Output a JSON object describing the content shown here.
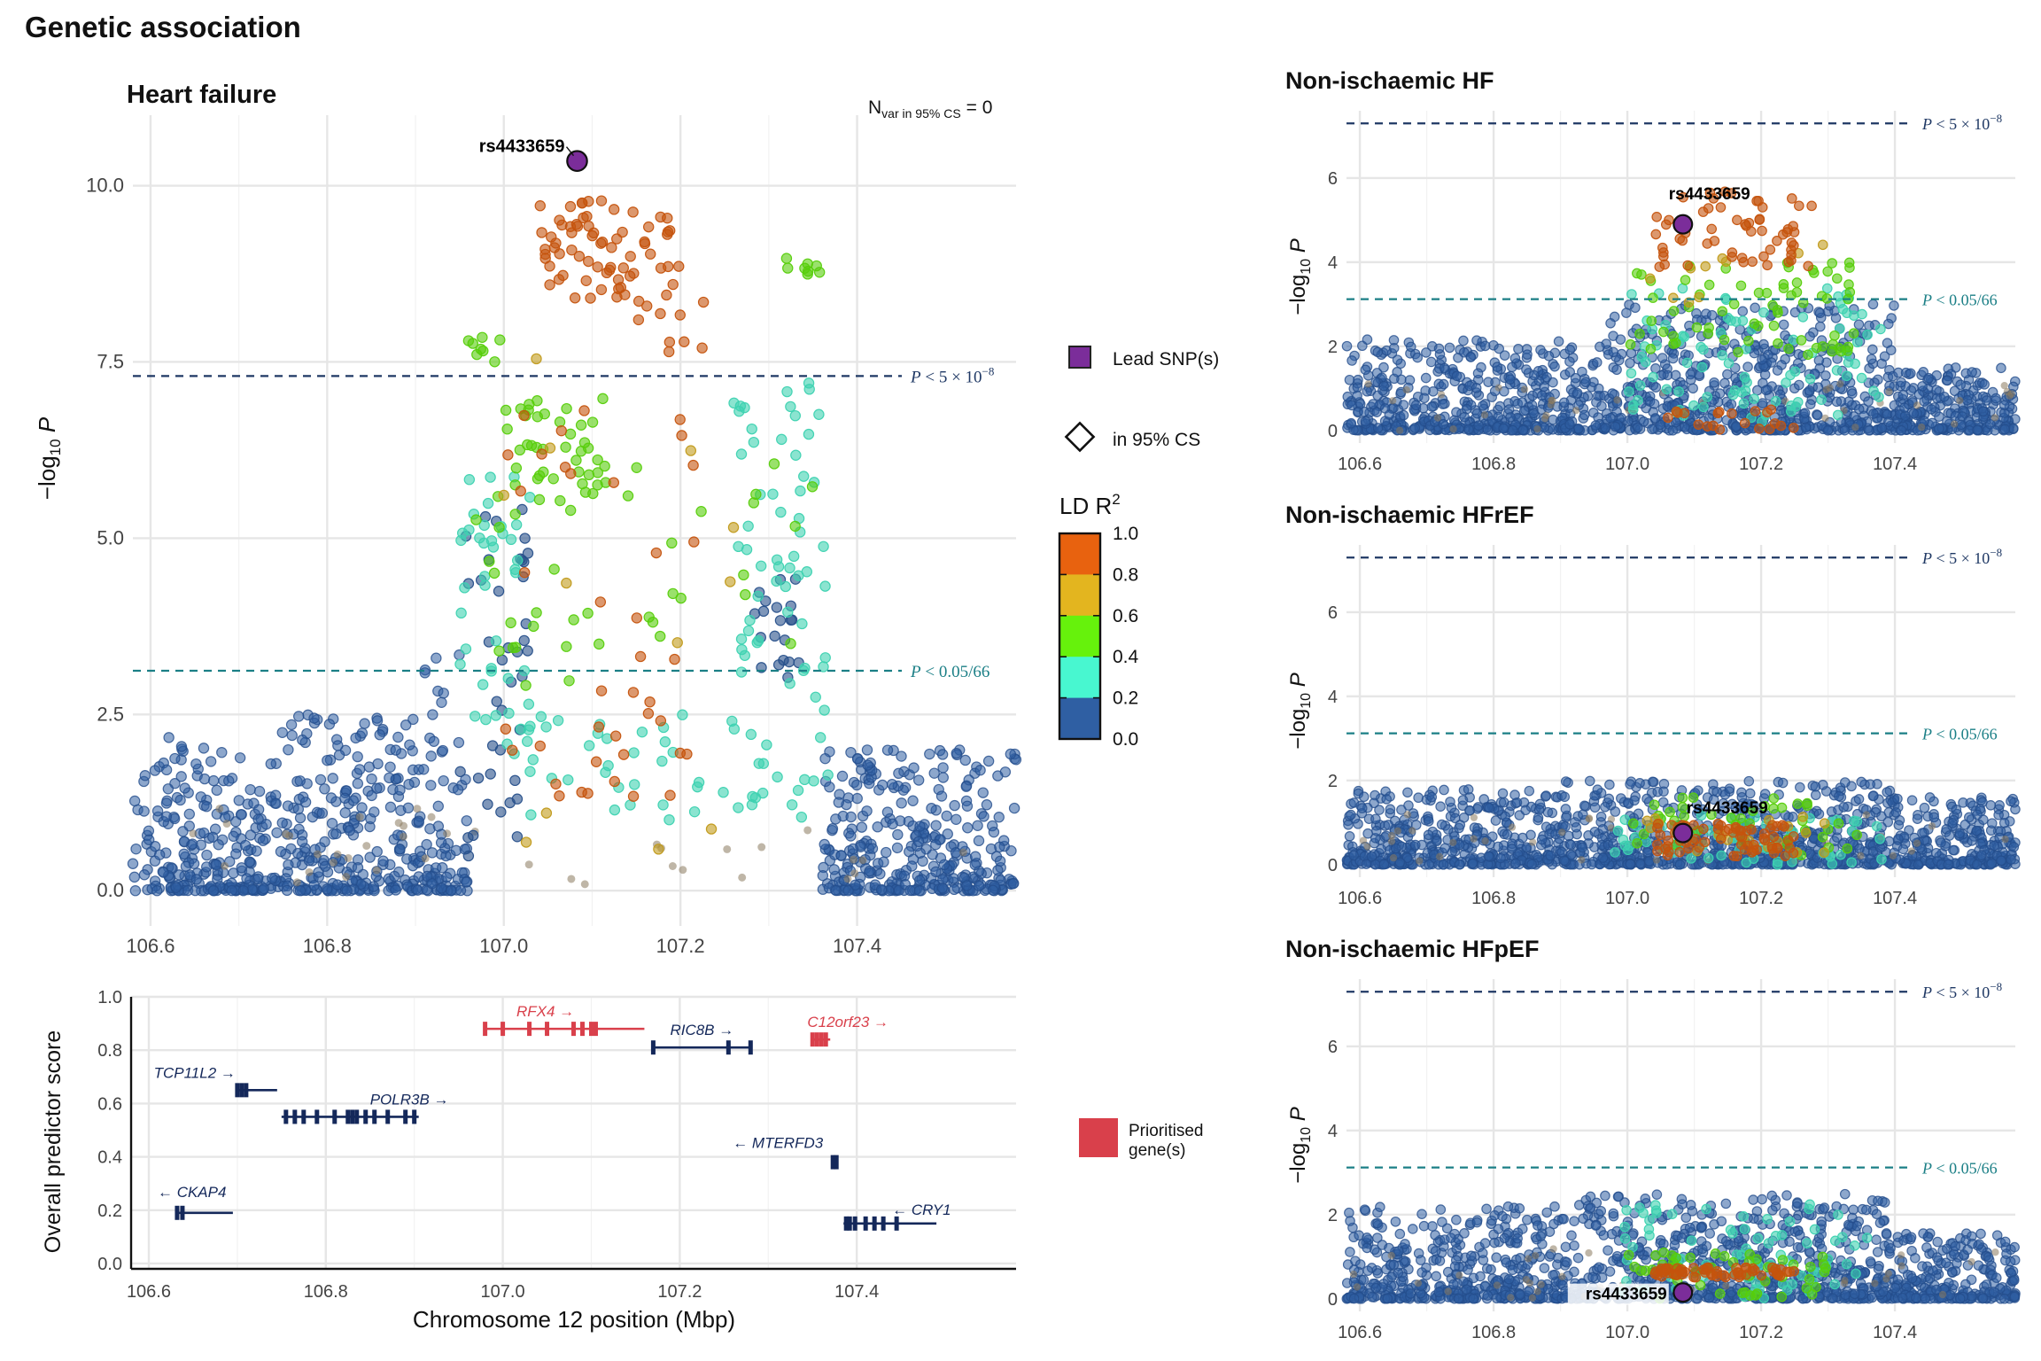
{
  "figure_title": "Genetic association",
  "x_axis_label": "Chromosome 12 position (Mbp)",
  "x_ticks": [
    "106.6",
    "106.8",
    "107.0",
    "107.2",
    "107.4"
  ],
  "legend": {
    "lead_snp": "Lead SNP(s)",
    "in_cs": "in 95% CS",
    "ld_title": "LD R",
    "ld_sup": "2",
    "ld_ticks": [
      "1.0",
      "0.8",
      "0.6",
      "0.4",
      "0.2",
      "0.0"
    ],
    "ld_colors": [
      "#e8620f",
      "#e3b51f",
      "#66f20c",
      "#48f7d0",
      "#2f5fa3"
    ],
    "lead_color": "#7b2d9a",
    "prioritised": "Prioritised",
    "prioritised2": "gene(s)",
    "prioritised_color": "#d9404b"
  },
  "chart_data": [
    {
      "type": "scatter",
      "title": "Heart failure",
      "note": "N",
      "note_sub": "var in 95% CS",
      "note_val": "= 0",
      "ylabel": "−log10 P",
      "ylabel_main": "−log",
      "ylabel_sub": "10",
      "ylabel_var": "P",
      "xlim": [
        106.58,
        107.58
      ],
      "ylim": [
        -0.5,
        11.0
      ],
      "y_ticks": [
        "0.0",
        "2.5",
        "5.0",
        "7.5",
        "10.0"
      ],
      "y_tick_values": [
        0,
        2.5,
        5.0,
        7.5,
        10.0
      ],
      "thresholds": [
        {
          "y": 7.3,
          "label": "P < 5 × 10⁻⁸",
          "label_var": "P",
          "label_rest": " < 5 × 10",
          "label_sup": "−8",
          "color": "#1f3864"
        },
        {
          "y": 3.12,
          "label": "P < 0.05/66",
          "label_var": "P",
          "label_rest": " < 0.05/66",
          "label_sup": "",
          "color": "#1b7f86"
        }
      ],
      "lead_snp": {
        "name": "rs4433659",
        "x": 107.083,
        "y": 10.35
      },
      "background_profile": [
        {
          "x0": 106.58,
          "x1": 106.72,
          "max": 2.2
        },
        {
          "x0": 106.72,
          "x1": 106.9,
          "max": 2.5
        },
        {
          "x0": 106.9,
          "x1": 106.96,
          "max": 3.4
        },
        {
          "x0": 107.36,
          "x1": 107.58,
          "max": 2.0
        }
      ],
      "clusters": [
        {
          "ld": 4,
          "x0": 107.04,
          "x1": 107.2,
          "y0": 8.4,
          "y1": 9.8,
          "n": 70
        },
        {
          "ld": 4,
          "x0": 107.15,
          "x1": 107.23,
          "y0": 7.6,
          "y1": 8.4,
          "n": 10
        },
        {
          "ld": 4,
          "x0": 107.0,
          "x1": 107.22,
          "y0": 1.3,
          "y1": 7.0,
          "n": 40
        },
        {
          "ld": 3,
          "x0": 107.0,
          "x1": 107.3,
          "y0": 0.5,
          "y1": 9.3,
          "n": 12
        },
        {
          "ld": 2,
          "x0": 106.96,
          "x1": 107.01,
          "y0": 7.5,
          "y1": 7.9,
          "n": 8
        },
        {
          "ld": 2,
          "x0": 107.0,
          "x1": 107.12,
          "y0": 5.5,
          "y1": 7.0,
          "n": 40
        },
        {
          "ld": 2,
          "x0": 107.32,
          "x1": 107.36,
          "y0": 8.6,
          "y1": 9.0,
          "n": 8
        },
        {
          "ld": 2,
          "x0": 106.96,
          "x1": 107.35,
          "y0": 2.5,
          "y1": 6.2,
          "n": 40
        },
        {
          "ld": 1,
          "x0": 106.95,
          "x1": 107.03,
          "y0": 2.0,
          "y1": 6.0,
          "n": 40
        },
        {
          "ld": 1,
          "x0": 107.26,
          "x1": 107.37,
          "y0": 1.0,
          "y1": 7.3,
          "n": 70
        },
        {
          "ld": 1,
          "x0": 107.0,
          "x1": 107.3,
          "y0": 1.0,
          "y1": 2.5,
          "n": 40
        },
        {
          "ld": 0,
          "x0": 106.95,
          "x1": 107.03,
          "y0": 0.3,
          "y1": 5.5,
          "n": 40
        },
        {
          "ld": 0,
          "x0": 107.28,
          "x1": 107.34,
          "y0": 3.0,
          "y1": 4.5,
          "n": 20
        }
      ]
    },
    {
      "type": "scatter",
      "title": "Non-ischaemic HF",
      "ylabel_main": "−log",
      "ylabel_sub": "10",
      "ylabel_var": "P",
      "xlim": [
        106.58,
        107.58
      ],
      "ylim": [
        -0.3,
        7.6
      ],
      "y_ticks": [
        "0",
        "2",
        "4",
        "6"
      ],
      "y_tick_values": [
        0,
        2,
        4,
        6
      ],
      "thresholds": [
        {
          "y": 7.3,
          "label_var": "P",
          "label_rest": " < 5 × 10",
          "label_sup": "−8",
          "color": "#1f3864"
        },
        {
          "y": 3.12,
          "label_var": "P",
          "label_rest": " < 0.05/66",
          "label_sup": "",
          "color": "#1b7f86"
        }
      ],
      "lead_snp": {
        "name": "rs4433659",
        "x": 107.083,
        "y": 4.9
      },
      "background_profile": [
        {
          "x0": 106.58,
          "x1": 106.95,
          "max": 2.2
        },
        {
          "x0": 106.95,
          "x1": 107.4,
          "max": 3.0
        },
        {
          "x0": 107.4,
          "x1": 107.58,
          "max": 1.5
        }
      ],
      "clusters": [
        {
          "ld": 4,
          "x0": 107.04,
          "x1": 107.28,
          "y0": 3.8,
          "y1": 5.7,
          "n": 60
        },
        {
          "ld": 3,
          "x0": 107.0,
          "x1": 107.3,
          "y0": 3.0,
          "y1": 4.5,
          "n": 10
        },
        {
          "ld": 2,
          "x0": 106.98,
          "x1": 107.35,
          "y0": 1.8,
          "y1": 4.0,
          "n": 70
        },
        {
          "ld": 1,
          "x0": 107.0,
          "x1": 107.38,
          "y0": 0.2,
          "y1": 3.5,
          "n": 90
        },
        {
          "ld": 4,
          "x0": 107.05,
          "x1": 107.25,
          "y0": 0.0,
          "y1": 0.6,
          "n": 20
        }
      ]
    },
    {
      "type": "scatter",
      "title": "Non-ischaemic HFrEF",
      "ylabel_main": "−log",
      "ylabel_sub": "10",
      "ylabel_var": "P",
      "xlim": [
        106.58,
        107.58
      ],
      "ylim": [
        -0.3,
        7.6
      ],
      "y_ticks": [
        "0",
        "2",
        "4",
        "6"
      ],
      "y_tick_values": [
        0,
        2,
        4,
        6
      ],
      "thresholds": [
        {
          "y": 7.3,
          "label_var": "P",
          "label_rest": " < 5 × 10",
          "label_sup": "−8",
          "color": "#1f3864"
        },
        {
          "y": 3.12,
          "label_var": "P",
          "label_rest": " < 0.05/66",
          "label_sup": "",
          "color": "#1b7f86"
        }
      ],
      "lead_snp": {
        "name": "rs4433659",
        "x": 107.083,
        "y": 0.75
      },
      "background_profile": [
        {
          "x0": 106.58,
          "x1": 106.9,
          "max": 1.8
        },
        {
          "x0": 106.9,
          "x1": 107.4,
          "max": 2.0
        },
        {
          "x0": 107.4,
          "x1": 107.58,
          "max": 1.6
        }
      ],
      "clusters": [
        {
          "ld": 4,
          "x0": 107.04,
          "x1": 107.25,
          "y0": 0.2,
          "y1": 1.0,
          "n": 70
        },
        {
          "ld": 3,
          "x0": 107.0,
          "x1": 107.3,
          "y0": 0.2,
          "y1": 1.2,
          "n": 20
        },
        {
          "ld": 2,
          "x0": 107.0,
          "x1": 107.35,
          "y0": 0.1,
          "y1": 1.6,
          "n": 40
        },
        {
          "ld": 1,
          "x0": 106.98,
          "x1": 107.38,
          "y0": 0.0,
          "y1": 1.2,
          "n": 70
        }
      ]
    },
    {
      "type": "scatter",
      "title": "Non-ischaemic HFpEF",
      "ylabel_main": "−log",
      "ylabel_sub": "10",
      "ylabel_var": "P",
      "xlim": [
        106.58,
        107.58
      ],
      "ylim": [
        -0.3,
        7.6
      ],
      "y_ticks": [
        "0",
        "2",
        "4",
        "6"
      ],
      "y_tick_values": [
        0,
        2,
        4,
        6
      ],
      "thresholds": [
        {
          "y": 7.3,
          "label_var": "P",
          "label_rest": " < 5 × 10",
          "label_sup": "−8",
          "color": "#1f3864"
        },
        {
          "y": 3.12,
          "label_var": "P",
          "label_rest": " < 0.05/66",
          "label_sup": "",
          "color": "#1b7f86"
        }
      ],
      "lead_snp": {
        "name": "rs4433659",
        "x": 107.083,
        "y": 0.15
      },
      "background_profile": [
        {
          "x0": 106.58,
          "x1": 106.9,
          "max": 2.2
        },
        {
          "x0": 106.9,
          "x1": 107.4,
          "max": 2.5
        },
        {
          "x0": 107.4,
          "x1": 107.58,
          "max": 1.6
        }
      ],
      "clusters": [
        {
          "ld": 4,
          "x0": 107.04,
          "x1": 107.25,
          "y0": 0.5,
          "y1": 0.75,
          "n": 60
        },
        {
          "ld": 2,
          "x0": 107.0,
          "x1": 107.3,
          "y0": 0.0,
          "y1": 1.1,
          "n": 50
        },
        {
          "ld": 1,
          "x0": 106.98,
          "x1": 107.38,
          "y0": 0.0,
          "y1": 2.3,
          "n": 80
        }
      ]
    },
    {
      "type": "gene_track",
      "ylabel": "Overall predictor score",
      "xlim": [
        106.58,
        107.58
      ],
      "ylim": [
        -0.02,
        1.0
      ],
      "y_ticks": [
        "0.0",
        "0.2",
        "0.4",
        "0.6",
        "0.8",
        "1.0"
      ],
      "y_tick_values": [
        0,
        0.2,
        0.4,
        0.6,
        0.8,
        1.0
      ],
      "genes": [
        {
          "name": "RFX4",
          "dir": "+",
          "start": 106.98,
          "end": 107.16,
          "score": 0.88,
          "prioritised": true,
          "exons": [
            106.98,
            107.0,
            107.03,
            107.05,
            107.08,
            107.09,
            107.1,
            107.105
          ]
        },
        {
          "name": "RIC8B",
          "dir": "+",
          "start": 107.17,
          "end": 107.28,
          "score": 0.81,
          "prioritised": false,
          "exons": [
            107.17,
            107.255,
            107.28
          ]
        },
        {
          "name": "C12orf23",
          "dir": "+",
          "start": 107.35,
          "end": 107.37,
          "score": 0.84,
          "prioritised": true,
          "exons": [
            107.35,
            107.355,
            107.36,
            107.365
          ]
        },
        {
          "name": "TCP11L2",
          "dir": "+",
          "start": 106.7,
          "end": 106.745,
          "score": 0.65,
          "prioritised": false,
          "exons": [
            106.7,
            106.705,
            106.71
          ]
        },
        {
          "name": "POLR3B",
          "dir": "+",
          "start": 106.75,
          "end": 106.905,
          "score": 0.55,
          "prioritised": false,
          "exons": [
            106.755,
            106.765,
            106.775,
            106.79,
            106.81,
            106.825,
            106.83,
            106.835,
            106.845,
            106.855,
            106.87,
            106.89,
            106.9
          ]
        },
        {
          "name": "MTERFD3",
          "dir": "-",
          "start": 107.372,
          "end": 107.378,
          "score": 0.38,
          "prioritised": false,
          "exons": [
            107.373,
            107.377
          ]
        },
        {
          "name": "CKAP4",
          "dir": "-",
          "start": 106.63,
          "end": 106.695,
          "score": 0.19,
          "prioritised": false,
          "exons": [
            106.632,
            106.638
          ]
        },
        {
          "name": "CRY1",
          "dir": "-",
          "start": 107.385,
          "end": 107.49,
          "score": 0.15,
          "prioritised": false,
          "exons": [
            107.388,
            107.392,
            107.398,
            107.41,
            107.42,
            107.43,
            107.445
          ]
        }
      ]
    }
  ]
}
